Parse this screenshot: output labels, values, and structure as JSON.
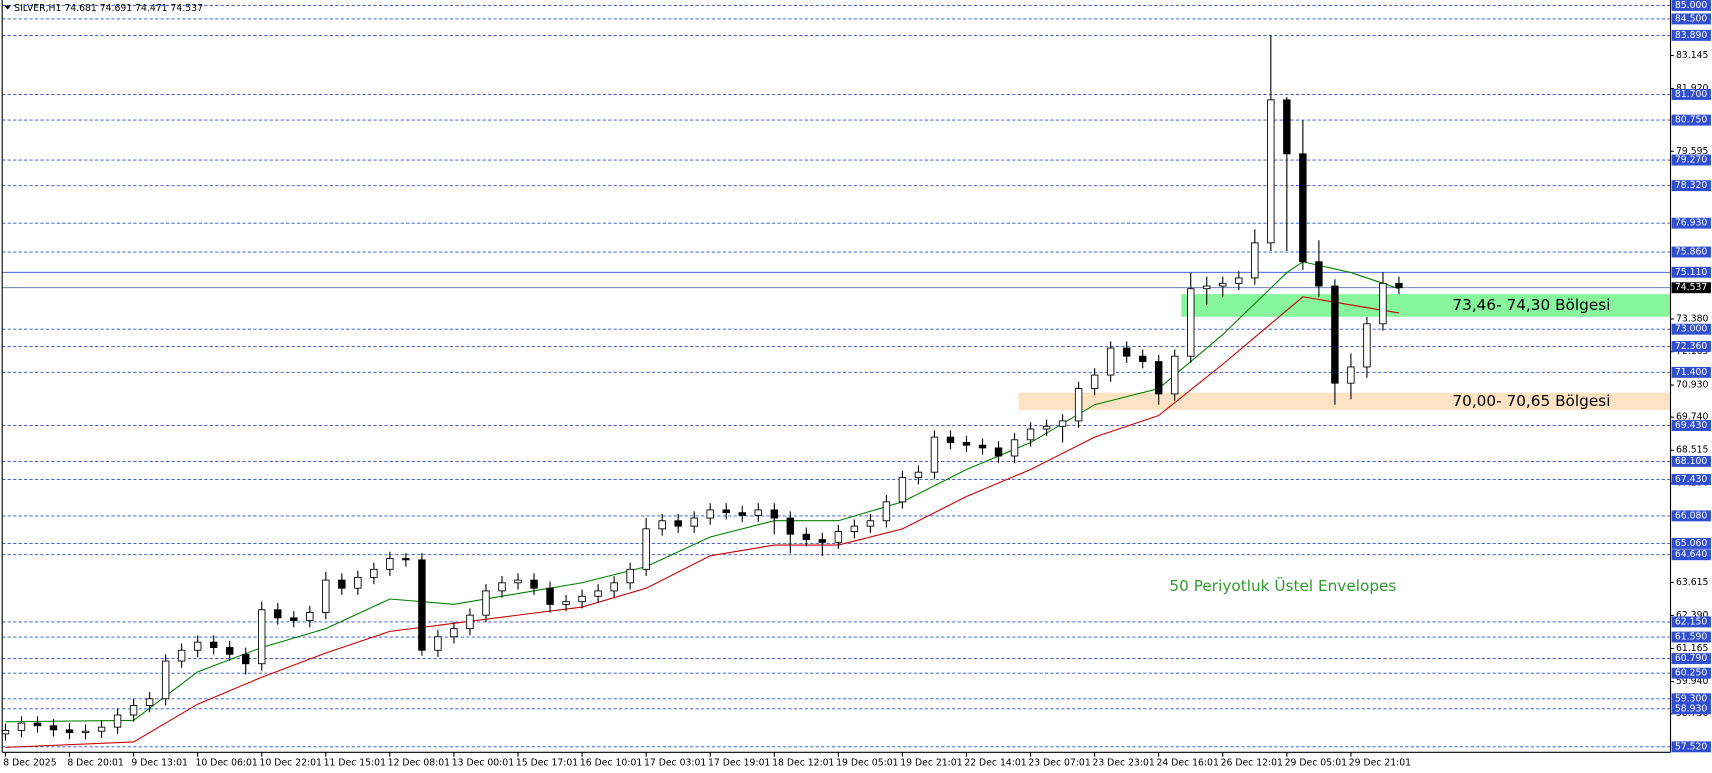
{
  "chart_data": {
    "type": "candlestick",
    "title": "SILVER,H1  74.681 74.691 74.471 74.537",
    "annotation": "50 Periyotluk Üstel Envelopes",
    "categories": [
      "8 Dec 2025",
      null,
      null,
      null,
      "8 Dec 20:01",
      null,
      null,
      null,
      "9 Dec 13:01",
      null,
      null,
      null,
      "10 Dec 06:01",
      null,
      null,
      null,
      "10 Dec 22:01",
      null,
      null,
      null,
      "11 Dec 15:01",
      null,
      null,
      null,
      "12 Dec 08:01",
      null,
      null,
      null,
      "13 Dec 00:01",
      null,
      null,
      null,
      "15 Dec 17:01",
      null,
      null,
      null,
      "16 Dec 10:01",
      null,
      null,
      null,
      "17 Dec 03:01",
      null,
      null,
      null,
      "17 Dec 19:01",
      null,
      null,
      null,
      "18 Dec 12:01",
      null,
      null,
      null,
      "19 Dec 05:01",
      null,
      null,
      null,
      "19 Dec 21:01",
      null,
      null,
      null,
      "22 Dec 14:01",
      null,
      null,
      null,
      "23 Dec 07:01",
      null,
      null,
      null,
      "23 Dec 23:01",
      null,
      null,
      null,
      "24 Dec 16:01",
      null,
      null,
      null,
      "26 Dec 12:01",
      null,
      null,
      null,
      "29 Dec 05:01",
      null,
      null,
      null,
      "29 Dec 21:01",
      null,
      null,
      null
    ],
    "open": [
      58.0,
      58.13,
      58.4,
      58.3,
      58.15,
      58.05,
      58.1,
      58.25,
      58.7,
      59.05,
      59.3,
      60.7,
      61.1,
      61.4,
      61.2,
      60.95,
      60.6,
      62.6,
      62.3,
      62.2,
      62.5,
      63.7,
      63.4,
      63.8,
      64.1,
      64.5,
      64.45,
      61.1,
      61.6,
      61.9,
      62.4,
      63.3,
      63.6,
      63.7,
      63.4,
      62.8,
      62.9,
      63.1,
      63.3,
      63.6,
      64.1,
      65.6,
      65.9,
      65.7,
      66.0,
      66.3,
      66.2,
      66.1,
      66.3,
      66.0,
      65.4,
      65.2,
      65.1,
      65.5,
      65.7,
      65.9,
      66.6,
      67.5,
      67.7,
      69.0,
      68.8,
      68.7,
      68.6,
      68.3,
      68.9,
      69.3,
      69.4,
      69.6,
      70.8,
      71.3,
      72.3,
      72.0,
      71.8,
      70.6,
      72.0,
      74.5,
      74.6,
      74.7,
      74.9,
      76.2,
      81.5,
      79.5,
      75.5,
      74.6,
      71.0,
      71.6,
      73.2,
      74.7
    ],
    "high": [
      58.38,
      58.65,
      58.65,
      58.55,
      58.4,
      58.35,
      58.5,
      58.95,
      59.3,
      59.55,
      60.95,
      61.35,
      61.65,
      61.65,
      61.45,
      61.2,
      62.9,
      62.85,
      62.55,
      62.75,
      64.0,
      63.95,
      64.05,
      64.35,
      64.75,
      64.7,
      64.7,
      61.85,
      62.15,
      62.65,
      63.55,
      63.85,
      63.95,
      63.95,
      63.65,
      63.15,
      63.35,
      63.55,
      63.85,
      64.35,
      66.0,
      66.15,
      66.15,
      66.25,
      66.55,
      66.55,
      66.45,
      66.55,
      66.55,
      66.25,
      65.65,
      65.45,
      65.75,
      65.95,
      66.15,
      66.85,
      67.75,
      67.95,
      69.25,
      69.25,
      69.05,
      68.95,
      68.85,
      69.15,
      69.55,
      69.65,
      69.85,
      71.05,
      71.55,
      72.55,
      72.55,
      72.25,
      72.05,
      72.25,
      75.1,
      74.95,
      74.95,
      75.15,
      76.7,
      83.89,
      81.6,
      80.75,
      76.3,
      74.85,
      72.1,
      73.45,
      75.11,
      74.95
    ],
    "low": [
      57.75,
      57.88,
      58.05,
      57.9,
      57.8,
      57.8,
      57.85,
      58.0,
      58.45,
      58.8,
      59.05,
      60.45,
      60.85,
      60.95,
      60.7,
      60.2,
      60.35,
      62.05,
      61.95,
      61.95,
      62.25,
      63.15,
      63.15,
      63.55,
      63.85,
      64.2,
      60.9,
      60.85,
      61.35,
      61.65,
      62.15,
      63.05,
      63.35,
      63.15,
      62.5,
      62.55,
      62.65,
      62.85,
      63.05,
      63.35,
      63.85,
      65.35,
      65.45,
      65.45,
      65.75,
      65.95,
      65.85,
      65.85,
      65.4,
      64.7,
      64.95,
      64.6,
      64.85,
      65.25,
      65.45,
      65.65,
      66.35,
      67.25,
      67.45,
      68.55,
      68.45,
      68.35,
      68.05,
      68.05,
      68.65,
      69.05,
      68.8,
      69.35,
      70.55,
      71.05,
      71.75,
      71.55,
      70.2,
      70.35,
      71.75,
      73.9,
      74.2,
      74.45,
      74.65,
      75.9,
      75.9,
      75.2,
      74.2,
      70.2,
      70.4,
      71.2,
      72.95,
      74.3
    ],
    "close": [
      58.13,
      58.4,
      58.3,
      58.15,
      58.05,
      58.1,
      58.25,
      58.7,
      59.05,
      59.3,
      60.7,
      61.1,
      61.4,
      61.2,
      60.95,
      60.6,
      62.6,
      62.3,
      62.2,
      62.5,
      63.7,
      63.4,
      63.8,
      64.1,
      64.5,
      64.45,
      61.1,
      61.6,
      61.9,
      62.4,
      63.3,
      63.6,
      63.7,
      63.4,
      62.8,
      62.9,
      63.1,
      63.3,
      63.6,
      64.1,
      65.6,
      65.9,
      65.7,
      66.0,
      66.3,
      66.2,
      66.1,
      66.3,
      66.0,
      65.4,
      65.2,
      65.1,
      65.5,
      65.7,
      65.9,
      66.6,
      67.5,
      67.7,
      69.0,
      68.8,
      68.7,
      68.6,
      68.3,
      68.9,
      69.3,
      69.4,
      69.6,
      70.8,
      71.3,
      72.3,
      72.0,
      71.8,
      70.6,
      72.0,
      74.5,
      74.6,
      74.7,
      74.9,
      76.2,
      81.5,
      79.5,
      75.5,
      74.6,
      71.0,
      71.6,
      73.2,
      74.7,
      74.54
    ],
    "envelopes": [
      {
        "color": "#008000",
        "x": [
          0,
          8,
          12,
          16,
          20,
          24,
          28,
          32,
          36,
          40,
          44,
          48,
          52,
          56,
          60,
          64,
          68,
          72,
          76,
          80,
          81,
          84,
          87
        ],
        "values": [
          58.45,
          58.5,
          60.3,
          61.2,
          61.9,
          63.0,
          62.8,
          63.2,
          63.6,
          64.2,
          65.3,
          65.9,
          65.9,
          66.6,
          67.8,
          68.8,
          70.2,
          70.8,
          72.8,
          75.1,
          75.5,
          75.1,
          74.5
        ]
      },
      {
        "color": "#cc0000",
        "x": [
          0,
          8,
          12,
          16,
          20,
          24,
          28,
          32,
          36,
          40,
          44,
          48,
          52,
          56,
          60,
          64,
          68,
          72,
          76,
          80,
          81,
          84,
          87
        ],
        "values": [
          57.5,
          57.7,
          59.1,
          60.1,
          61.0,
          61.8,
          62.1,
          62.4,
          62.7,
          63.4,
          64.6,
          65.0,
          65.0,
          65.6,
          66.8,
          67.8,
          69.0,
          69.8,
          71.7,
          73.7,
          74.2,
          73.9,
          73.6
        ]
      }
    ],
    "zones": [
      {
        "low": 73.46,
        "high": 74.3,
        "label": "73,46- 74,30 Bölgesi",
        "color": "#86f59c"
      },
      {
        "low": 70.0,
        "high": 70.65,
        "label": "70,00- 70,65 Bölgesi",
        "color": "#fde3c4"
      }
    ],
    "ylim": [
      57.52,
      85
    ],
    "yticks": [
      {
        "value": 83.145,
        "label": "83.145"
      },
      {
        "value": 81.92,
        "label": "81.920"
      },
      {
        "value": 79.595,
        "label": "79.595"
      },
      {
        "value": 73.38,
        "label": "73.380"
      },
      {
        "value": 72.165,
        "label": "72.165"
      },
      {
        "value": 70.93,
        "label": "70.930"
      },
      {
        "value": 69.74,
        "label": "69.740"
      },
      {
        "value": 68.515,
        "label": "68.515"
      },
      {
        "value": 67.29,
        "label": "67.290"
      },
      {
        "value": 63.615,
        "label": "63.615"
      },
      {
        "value": 62.39,
        "label": "62.390"
      },
      {
        "value": 61.165,
        "label": "61.165"
      },
      {
        "value": 59.94,
        "label": "59.940"
      },
      {
        "value": 58.75,
        "label": "58.750"
      }
    ],
    "levels": [
      {
        "value": 85,
        "label": "85.000"
      },
      {
        "value": 84.5,
        "label": "84.500"
      },
      {
        "value": 83.89,
        "label": "83.890"
      },
      {
        "value": 81.7,
        "label": "81.700"
      },
      {
        "value": 80.75,
        "label": "80.750"
      },
      {
        "value": 79.27,
        "label": "79.270"
      },
      {
        "value": 78.32,
        "label": "78.320"
      },
      {
        "value": 76.93,
        "label": "76.930"
      },
      {
        "value": 75.86,
        "label": "75.860"
      },
      {
        "value": 75.11,
        "label": "75.110",
        "style": "solid"
      },
      {
        "value": 73,
        "label": "73.000"
      },
      {
        "value": 72.36,
        "label": "72.360"
      },
      {
        "value": 71.4,
        "label": "71.400"
      },
      {
        "value": 69.43,
        "label": "69.430"
      },
      {
        "value": 68.1,
        "label": "68.100"
      },
      {
        "value": 67.43,
        "label": "67.430"
      },
      {
        "value": 66.08,
        "label": "66.080"
      },
      {
        "value": 65.06,
        "label": "65.060"
      },
      {
        "value": 64.64,
        "label": "64.640"
      },
      {
        "value": 62.15,
        "label": "62.150"
      },
      {
        "value": 61.59,
        "label": "61.590"
      },
      {
        "value": 60.79,
        "label": "60.790"
      },
      {
        "value": 60.25,
        "label": "60.250"
      },
      {
        "value": 59.3,
        "label": "59.300"
      },
      {
        "value": 58.93,
        "label": "58.930"
      },
      {
        "value": 57.52,
        "label": "57.520"
      }
    ],
    "level_color": "#2f4fd0",
    "current_price": {
      "value": 74.537,
      "label": "74.537"
    }
  }
}
